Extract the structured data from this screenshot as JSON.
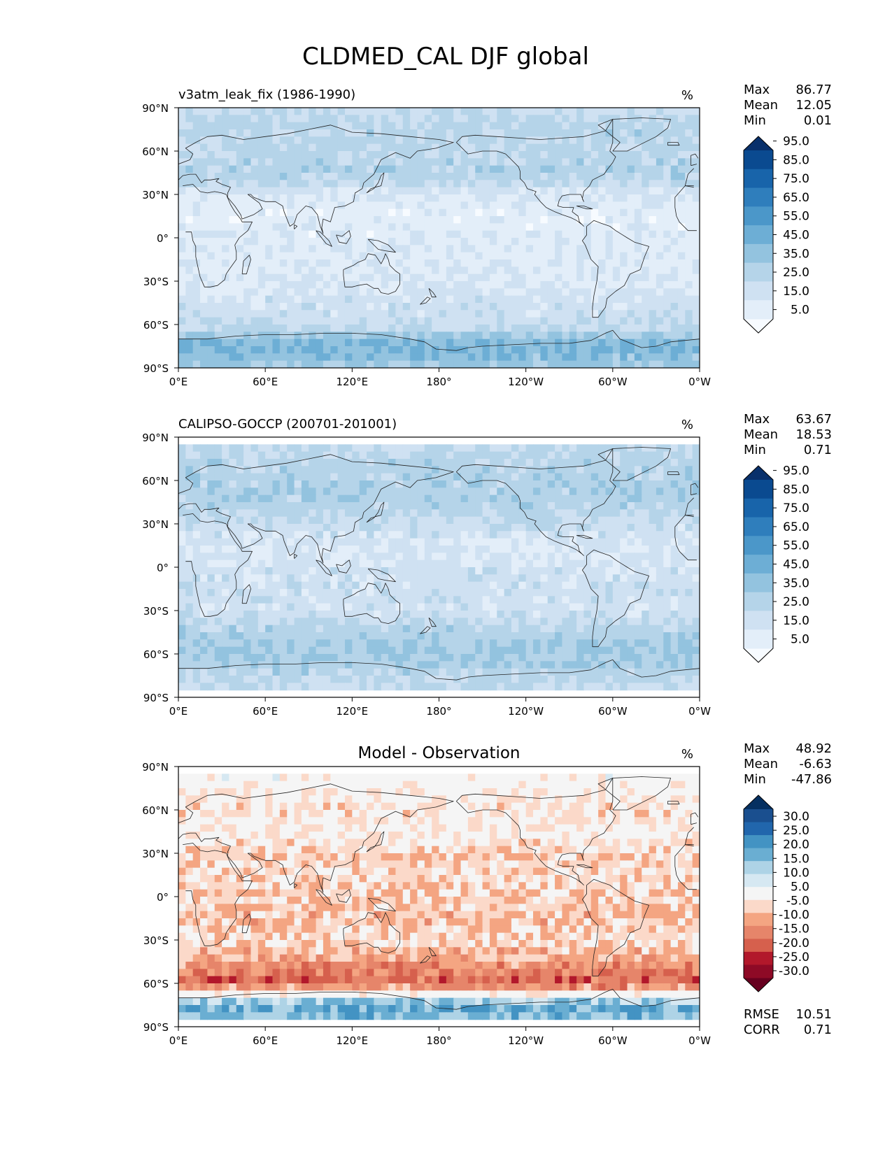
{
  "figure": {
    "title": "CLDMED_CAL DJF global",
    "lat_tick_labels": [
      "90°N",
      "60°N",
      "30°N",
      "0°",
      "30°S",
      "60°S",
      "90°S"
    ],
    "lon_tick_labels": [
      "0°E",
      "60°E",
      "120°E",
      "180°",
      "120°W",
      "60°W",
      "0°W"
    ],
    "stat_labels": {
      "max": "Max",
      "mean": "Mean",
      "min": "Min",
      "rmse": "RMSE",
      "corr": "CORR"
    }
  },
  "chart_data": [
    {
      "type": "heatmap",
      "title": "v3atm_leak_fix (1986-1990)",
      "units": "%",
      "colormap": "Blues",
      "stats": {
        "max": "86.77",
        "mean": "12.05",
        "min": "0.01"
      },
      "colorbar_levels": [
        0,
        10,
        20,
        30,
        40,
        50,
        60,
        70,
        80,
        90,
        100
      ],
      "colorbar_tick_labels": [
        "5.0",
        "15.0",
        "25.0",
        "35.0",
        "45.0",
        "55.0",
        "65.0",
        "75.0",
        "85.0",
        "95.0"
      ],
      "colors": [
        "#f7fbff",
        "#e3eef9",
        "#cfe1f2",
        "#b5d4e9",
        "#93c3df",
        "#6daed5",
        "#4b97c9",
        "#2f7ebc",
        "#1864aa",
        "#0a4a90",
        "#08306b"
      ],
      "zonal_profile": {
        "lat": [
          90,
          75,
          60,
          45,
          30,
          15,
          0,
          -15,
          -30,
          -45,
          -60,
          -75,
          -90
        ],
        "value": [
          18,
          24,
          22,
          26,
          10,
          5,
          7,
          8,
          10,
          14,
          18,
          42,
          30
        ]
      }
    },
    {
      "type": "heatmap",
      "title": "CALIPSO-GOCCP (200701-201001)",
      "units": "%",
      "colormap": "Blues",
      "stats": {
        "max": "63.67",
        "mean": "18.53",
        "min": "0.71"
      },
      "colorbar_levels": [
        0,
        10,
        20,
        30,
        40,
        50,
        60,
        70,
        80,
        90,
        100
      ],
      "colorbar_tick_labels": [
        "5.0",
        "15.0",
        "25.0",
        "35.0",
        "45.0",
        "55.0",
        "65.0",
        "75.0",
        "85.0",
        "95.0"
      ],
      "colors": [
        "#f7fbff",
        "#e3eef9",
        "#cfe1f2",
        "#b5d4e9",
        "#93c3df",
        "#6daed5",
        "#4b97c9",
        "#2f7ebc",
        "#1864aa",
        "#0a4a90",
        "#08306b"
      ],
      "zonal_profile": {
        "lat": [
          84,
          75,
          60,
          45,
          30,
          15,
          0,
          -15,
          -30,
          -45,
          -60,
          -75,
          -84
        ],
        "value": [
          20,
          24,
          26,
          26,
          18,
          10,
          14,
          16,
          14,
          26,
          32,
          22,
          18
        ]
      }
    },
    {
      "type": "heatmap",
      "title": "Model - Observation",
      "units": "%",
      "colormap": "RdBu_r",
      "stats": {
        "max": "48.92",
        "mean": "-6.63",
        "min": "-47.86"
      },
      "error_stats": {
        "rmse": "10.51",
        "corr": "0.71"
      },
      "colorbar_levels": [
        -35,
        -30,
        -25,
        -20,
        -15,
        -10,
        -5,
        5,
        10,
        15,
        20,
        25,
        30,
        35
      ],
      "colorbar_tick_labels": [
        "-30.0",
        "-25.0",
        "-20.0",
        "-15.0",
        "-10.0",
        "-5.0",
        "5.0",
        "10.0",
        "15.0",
        "20.0",
        "25.0",
        "30.0"
      ],
      "colors": [
        "#67001f",
        "#8e0a26",
        "#b2182b",
        "#d6604d",
        "#e6856a",
        "#f4a582",
        "#fbd9c9",
        "#f5f5f5",
        "#d6e8f2",
        "#aed3e6",
        "#6aaed2",
        "#4393c3",
        "#2166ac",
        "#1a4f8f",
        "#053061"
      ],
      "zonal_profile": {
        "lat": [
          84,
          75,
          60,
          45,
          30,
          15,
          0,
          -15,
          -30,
          -45,
          -60,
          -75,
          -84
        ],
        "value": [
          0,
          -2,
          -6,
          -2,
          -8,
          -6,
          -8,
          -10,
          -6,
          -14,
          -22,
          20,
          15
        ]
      }
    }
  ]
}
